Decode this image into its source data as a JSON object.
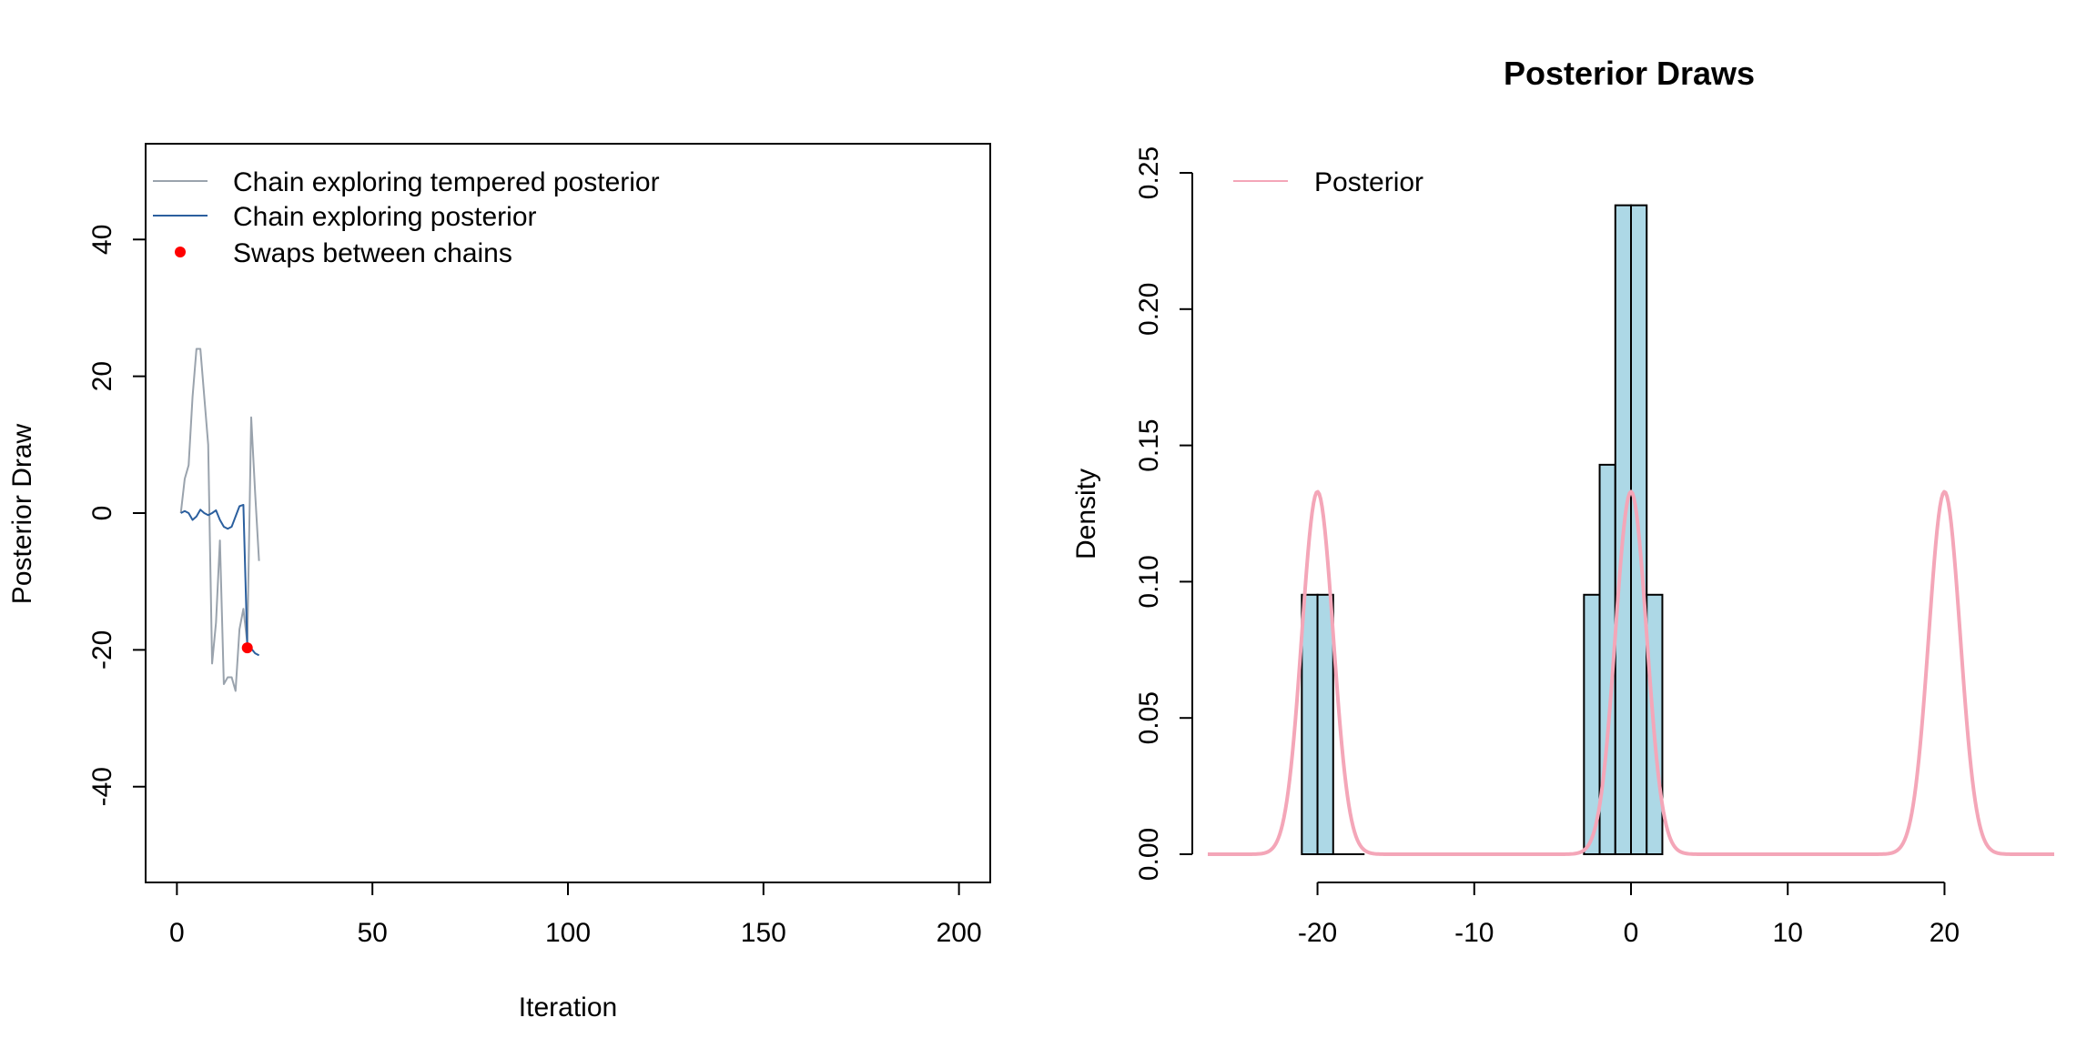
{
  "chart_data": [
    {
      "type": "line",
      "title": "",
      "xlabel": "Iteration",
      "ylabel": "Posterior Draw",
      "xlim": [
        -8,
        208
      ],
      "ylim": [
        -54,
        54
      ],
      "xticks": [
        0,
        50,
        100,
        150,
        200
      ],
      "xtick_labels": [
        "0",
        "50",
        "100",
        "150",
        "200"
      ],
      "yticks": [
        -40,
        -20,
        0,
        20,
        40
      ],
      "ytick_labels": [
        "-40",
        "-20",
        "0",
        "20",
        "40"
      ],
      "legend_position": "top-left",
      "legend": [
        {
          "label": "Chain exploring tempered posterior",
          "kind": "line",
          "color": "#9aa3ad"
        },
        {
          "label": "Chain exploring posterior",
          "kind": "line",
          "color": "#2b5f9e"
        },
        {
          "label": "Swaps between chains",
          "kind": "point",
          "color": "#ff0000"
        }
      ],
      "series": [
        {
          "name": "Chain exploring tempered posterior",
          "color": "#9aa3ad",
          "x": [
            1,
            2,
            3,
            4,
            5,
            6,
            7,
            8,
            9,
            10,
            11,
            12,
            13,
            14,
            15,
            16,
            17,
            18,
            19,
            20,
            21
          ],
          "y": [
            0,
            5,
            7,
            17,
            24,
            24,
            17,
            10,
            -22,
            -16,
            -4,
            -25,
            -24,
            -24,
            -26,
            -17,
            -14,
            -19,
            14,
            3,
            -7
          ]
        },
        {
          "name": "Chain exploring posterior",
          "color": "#2b5f9e",
          "x": [
            1,
            2,
            3,
            4,
            5,
            6,
            7,
            8,
            9,
            10,
            11,
            12,
            13,
            14,
            15,
            16,
            17,
            18,
            19,
            20,
            21
          ],
          "y": [
            0,
            0.3,
            0,
            -1,
            -0.5,
            0.5,
            0,
            -0.3,
            0,
            0.4,
            -1,
            -2,
            -2.3,
            -2,
            -0.5,
            1,
            1.2,
            -19.5,
            -19.8,
            -20.5,
            -20.8
          ]
        }
      ],
      "swaps": {
        "name": "Swaps between chains",
        "color": "#ff0000",
        "x": [
          18
        ],
        "y": [
          -19.7
        ]
      }
    },
    {
      "type": "bar",
      "subtype": "histogram",
      "title": "Posterior Draws",
      "xlabel": "",
      "ylabel": "Density",
      "xlim": [
        -27,
        27
      ],
      "ylim": [
        0,
        0.25
      ],
      "xticks": [
        -20,
        -10,
        0,
        10,
        20
      ],
      "xtick_labels": [
        "-20",
        "-10",
        "0",
        "10",
        "20"
      ],
      "yticks": [
        0,
        0.05,
        0.1,
        0.15,
        0.2,
        0.25
      ],
      "ytick_labels": [
        "0.00",
        "0.05",
        "0.10",
        "0.15",
        "0.20",
        "0.25"
      ],
      "bar_fill": "#add8e6",
      "bins": [
        {
          "x0": -21,
          "x1": -20,
          "density": 0.0952
        },
        {
          "x0": -20,
          "x1": -19,
          "density": 0.0952
        },
        {
          "x0": -19,
          "x1": -18,
          "density": 0
        },
        {
          "x0": -18,
          "x1": -17,
          "density": 0
        },
        {
          "x0": -3,
          "x1": -2,
          "density": 0.0952
        },
        {
          "x0": -2,
          "x1": -1,
          "density": 0.1429
        },
        {
          "x0": -1,
          "x1": 0,
          "density": 0.2381
        },
        {
          "x0": 0,
          "x1": 1,
          "density": 0.2381
        },
        {
          "x0": 1,
          "x1": 2,
          "density": 0.0952
        }
      ],
      "legend_position": "top-left",
      "legend": [
        {
          "label": "Posterior",
          "kind": "line",
          "color": "#f4a6b8"
        }
      ],
      "curve": {
        "name": "Posterior",
        "color": "#f4a6b8",
        "formula": "mixture of three equal-weight normal densities",
        "means": [
          -20,
          0,
          20
        ],
        "sd": 1,
        "peak_density": 0.133
      }
    }
  ]
}
